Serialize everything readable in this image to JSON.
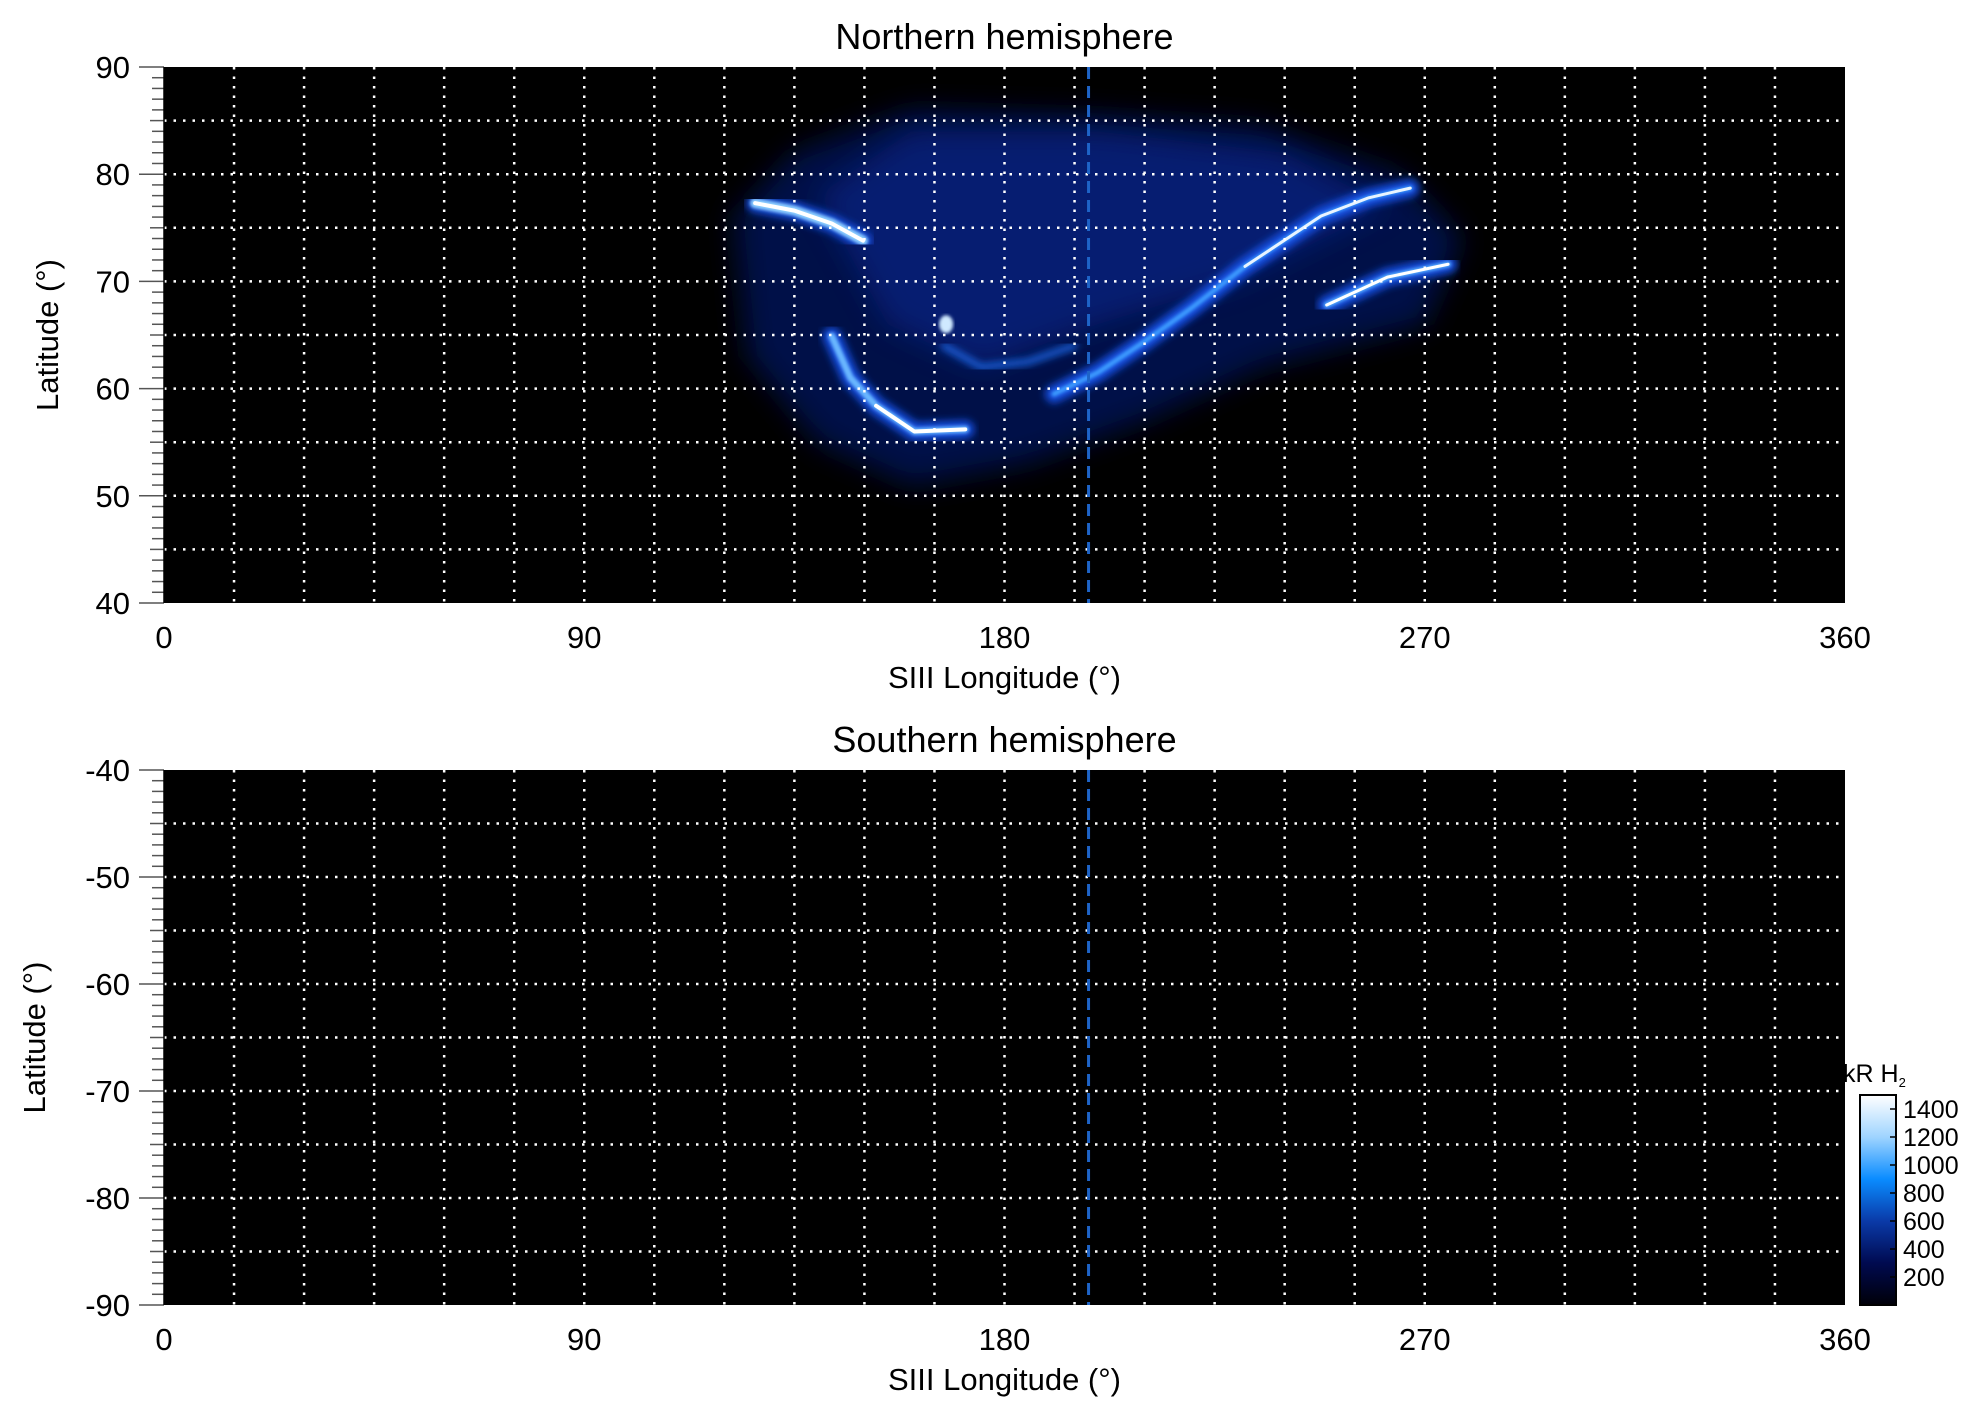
{
  "chart_data": [
    {
      "type": "heatmap",
      "title": "Northern hemisphere",
      "xlabel": "SIII Longitude (°)",
      "ylabel": "Latitude (°)",
      "xlim": [
        0,
        360
      ],
      "ylim": [
        40,
        90
      ],
      "xticks": [
        "0",
        "90",
        "180",
        "270",
        "360"
      ],
      "yticks": [
        "40",
        "50",
        "60",
        "70",
        "80",
        "90"
      ],
      "grid": {
        "x_step": 15,
        "y_step": 5,
        "style": "dotted",
        "color": "#ffffff"
      },
      "reference_line_lon": 198,
      "reference_line_color": "#1e64c8",
      "background": "#000000",
      "features": "auroral emission visible between ~120° and ~278° longitude, ~52°–86° latitude"
    },
    {
      "type": "heatmap",
      "title": "Southern hemisphere",
      "xlabel": "SIII Longitude (°)",
      "ylabel": "Latitude (°)",
      "xlim": [
        0,
        360
      ],
      "ylim": [
        -90,
        -40
      ],
      "xticks": [
        "0",
        "90",
        "180",
        "270",
        "360"
      ],
      "yticks": [
        "-40",
        "-50",
        "-60",
        "-70",
        "-80",
        "-90"
      ],
      "grid": {
        "x_step": 15,
        "y_step": 5,
        "style": "dotted",
        "color": "#ffffff"
      },
      "reference_line_lon": 198,
      "reference_line_color": "#1e64c8",
      "background": "#000000"
    }
  ],
  "colorbar": {
    "label": "kR H",
    "label_sub": "2",
    "ticks": [
      "1400",
      "1200",
      "1000",
      "800",
      "600",
      "400",
      "200"
    ],
    "range": [
      0,
      1500
    ],
    "colors": [
      "#000008",
      "#000a50",
      "#0a3aa8",
      "#0a8cff",
      "#9fd4ff",
      "#ffffff"
    ]
  }
}
